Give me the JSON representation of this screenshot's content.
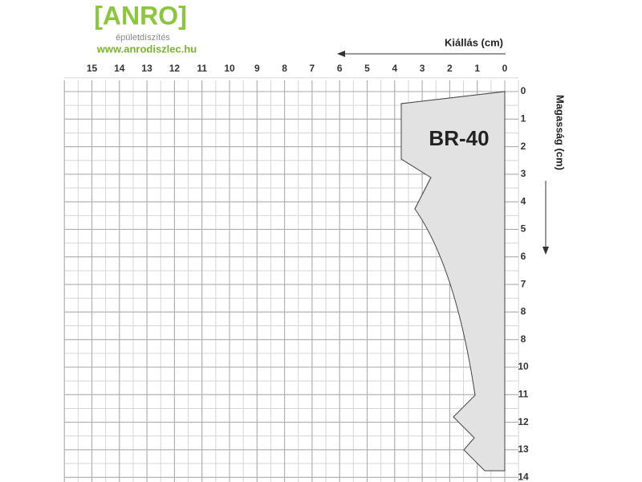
{
  "logo": {
    "brand": "[ANRO]",
    "tagline": "épületdíszítés",
    "url": "www.anrodiszlec.hu"
  },
  "x_axis": {
    "title": "Kiállás (cm)",
    "labels": [
      "15",
      "14",
      "13",
      "12",
      "11",
      "10",
      "9",
      "8",
      "7",
      "6",
      "5",
      "4",
      "3",
      "2",
      "1",
      "0"
    ]
  },
  "y_axis": {
    "title": "Magasság (cm)",
    "labels": [
      "0",
      "1",
      "2",
      "3",
      "4",
      "5",
      "6",
      "7",
      "8",
      "8",
      "10",
      "11",
      "12",
      "13",
      "14"
    ]
  },
  "profile": {
    "label": "BR-40"
  }
}
